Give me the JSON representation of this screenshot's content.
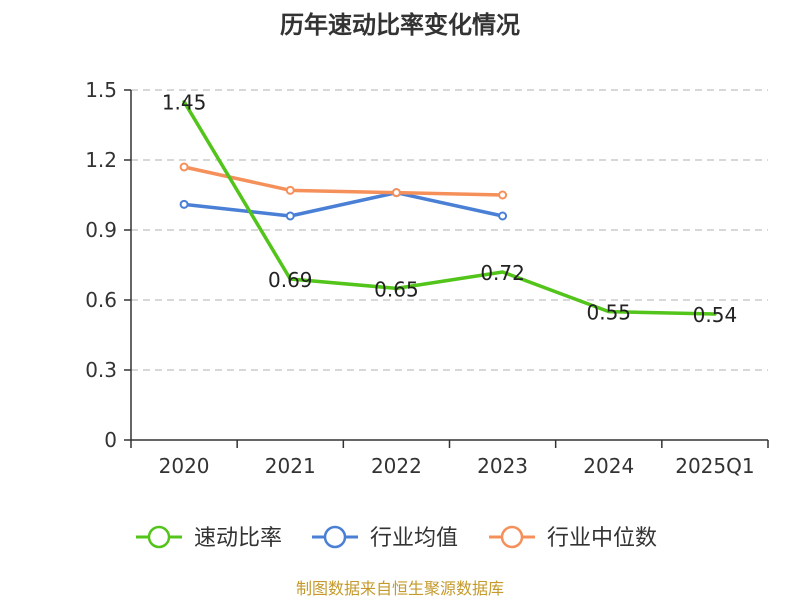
{
  "chart_data": {
    "type": "line",
    "title": "历年速动比率变化情况",
    "categories": [
      "2020",
      "2021",
      "2022",
      "2023",
      "2024",
      "2025Q1"
    ],
    "ylim": [
      0,
      1.5
    ],
    "yticks": [
      "0",
      "0.3",
      "0.6",
      "0.9",
      "1.2",
      "1.5"
    ],
    "grid": true,
    "legend_position": "bottom",
    "series": [
      {
        "name": "速动比率",
        "color": "#52c41a",
        "values": [
          1.45,
          0.69,
          0.65,
          0.72,
          0.55,
          0.54
        ],
        "labels": [
          "1.45",
          "0.69",
          "0.65",
          "0.72",
          "0.55",
          "0.54"
        ],
        "markers": false
      },
      {
        "name": "行业均值",
        "color": "#4a7fd6",
        "values": [
          1.01,
          0.96,
          1.06,
          0.96,
          null,
          null
        ],
        "markers": true
      },
      {
        "name": "行业中位数",
        "color": "#f5905a",
        "values": [
          1.17,
          1.07,
          1.06,
          1.05,
          null,
          null
        ],
        "markers": true
      }
    ]
  },
  "source": {
    "text": "制图数据来自恒生聚源数据库",
    "color": "#c49a2c"
  }
}
